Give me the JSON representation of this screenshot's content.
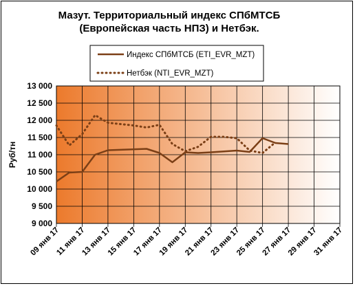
{
  "chart_data": {
    "type": "line",
    "title_lines": [
      "Мазут. Территориальный индекс СПбМТСБ",
      "(Европейская часть НПЗ) и Нетбэк."
    ],
    "ylabel": "Руб/тн",
    "ylim": [
      9000,
      13000
    ],
    "yticks": [
      "9 000",
      "9 500",
      "10 000",
      "10 500",
      "11 000",
      "11 500",
      "12 000",
      "12 500",
      "13 000"
    ],
    "ytick_values": [
      9000,
      9500,
      10000,
      10500,
      11000,
      11500,
      12000,
      12500,
      13000
    ],
    "x_tick_labels": [
      "09 янв 17",
      "11 янв 17",
      "13 янв 17",
      "15 янв 17",
      "17 янв 17",
      "19 янв 17",
      "21 янв 17",
      "23 янв 17",
      "25 янв 17",
      "27 янв 17",
      "29 янв 17",
      "31 янв 17"
    ],
    "x_range_days": [
      9,
      31
    ],
    "grid": true,
    "legend_position": "top",
    "colors": {
      "line": "#7b3f16",
      "gradient_start": "#ec7a2c",
      "gradient_end": "#ffffff"
    },
    "series": [
      {
        "name": "Индекс СПбМТСБ  (ETI_EVR_MZT)",
        "style": "solid",
        "x": [
          9,
          10,
          11,
          12,
          13,
          16,
          17,
          18,
          19,
          20,
          21,
          23,
          24,
          25,
          26,
          27
        ],
        "values": [
          10220,
          10480,
          10500,
          11000,
          11130,
          11170,
          11050,
          10780,
          11070,
          11050,
          11070,
          11120,
          11080,
          11480,
          11340,
          11310
        ]
      },
      {
        "name": "Нетбэк  (NTI_EVR_MZT)",
        "style": "dotted",
        "x": [
          9,
          10,
          11,
          12,
          13,
          15,
          16,
          17,
          18,
          19,
          20,
          21,
          22,
          23,
          24,
          25,
          26
        ],
        "values": [
          11850,
          11270,
          11600,
          12150,
          11930,
          11850,
          11790,
          11870,
          11310,
          11100,
          11230,
          11520,
          11520,
          11480,
          11120,
          11050,
          11360
        ]
      }
    ]
  }
}
